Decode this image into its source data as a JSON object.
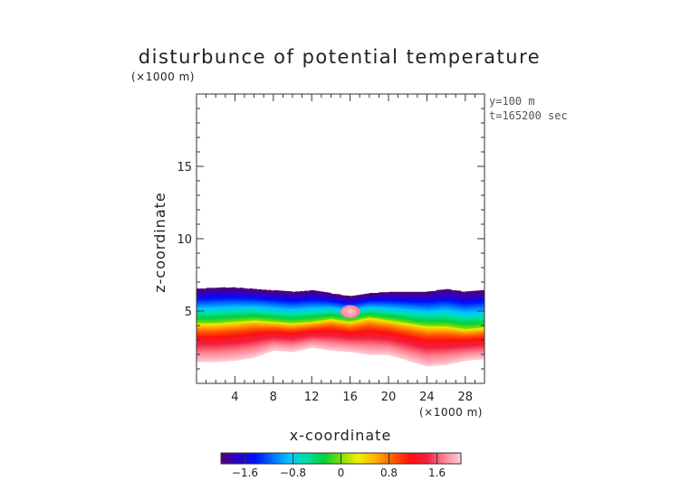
{
  "chart_data": {
    "type": "heatmap",
    "title": "disturbunce of potential temperature",
    "xlabel": "x-coordinate",
    "ylabel": "z-coordinate",
    "x_unit": "(×1000 m)",
    "y_unit": "(×1000 m)",
    "annotations": [
      "y=100 m",
      "t=165200 sec"
    ],
    "xlim": [
      0,
      30
    ],
    "ylim": [
      0,
      20
    ],
    "x_ticks": [
      4,
      8,
      12,
      16,
      20,
      24,
      28
    ],
    "y_ticks": [
      5,
      10,
      15
    ],
    "colorbar": {
      "range": [
        -2.0,
        2.0
      ],
      "ticks": [
        -1.6,
        -0.8,
        0,
        0.8,
        1.6
      ],
      "tick_labels": [
        "−1.6",
        "−0.8",
        "0",
        "0.8",
        "1.6"
      ],
      "colors": [
        "#50007a",
        "#2a00c8",
        "#0010ff",
        "#0070ff",
        "#00c8ff",
        "#00e0a0",
        "#00d040",
        "#80e000",
        "#f0f000",
        "#ffb000",
        "#ff6000",
        "#ff1010",
        "#f02040",
        "#ff8090",
        "#ffd0d8"
      ]
    },
    "field_profile": {
      "x": [
        0,
        2,
        4,
        6,
        8,
        10,
        12,
        14,
        16,
        18,
        20,
        22,
        24,
        26,
        28,
        30
      ],
      "top_height": [
        6.5,
        6.6,
        6.6,
        6.5,
        6.4,
        6.3,
        6.4,
        6.2,
        6.0,
        6.2,
        6.3,
        6.3,
        6.3,
        6.5,
        6.3,
        6.4
      ],
      "bottom_height": [
        1.5,
        1.5,
        1.6,
        1.8,
        2.3,
        2.2,
        2.5,
        2.3,
        2.2,
        2.0,
        2.0,
        1.6,
        1.2,
        1.3,
        1.6,
        1.7
      ],
      "zero_level": [
        4.2,
        4.2,
        4.3,
        4.4,
        4.3,
        4.2,
        4.3,
        4.5,
        4.3,
        4.6,
        4.4,
        4.2,
        4.0,
        4.0,
        3.8,
        3.9
      ]
    }
  }
}
